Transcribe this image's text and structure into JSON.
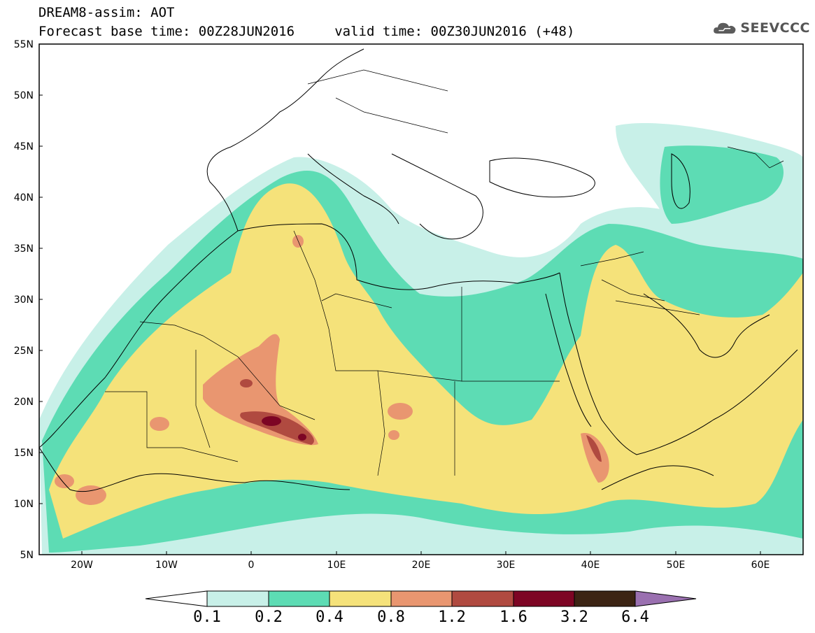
{
  "header": {
    "title_line1": "DREAM8-assim: AOT",
    "title_line2": "Forecast base time: 00Z28JUN2016     valid time: 00Z30JUN2016 (+48)"
  },
  "logo": {
    "text": "SEEVCCC",
    "icon": "cloud-icon"
  },
  "map": {
    "type": "filled-contour map",
    "region": "North Africa, Europe and Middle East",
    "lon_range": [
      -25,
      65
    ],
    "lat_range": [
      5,
      55
    ],
    "lat_ticks": [
      "55N",
      "50N",
      "45N",
      "40N",
      "35N",
      "30N",
      "25N",
      "20N",
      "15N",
      "10N",
      "5N"
    ],
    "lon_ticks": [
      "20W",
      "10W",
      "0",
      "10E",
      "20E",
      "30E",
      "40E",
      "50E",
      "60E"
    ]
  },
  "colorbar": {
    "labels": [
      "0.1",
      "0.2",
      "0.4",
      "0.8",
      "1.2",
      "1.6",
      "3.2",
      "6.4"
    ],
    "colors": [
      "#c8f0e8",
      "#5ddcb4",
      "#f5e27a",
      "#e99670",
      "#b04a40",
      "#7d0524",
      "#3c2414",
      "#9a70b0"
    ]
  }
}
